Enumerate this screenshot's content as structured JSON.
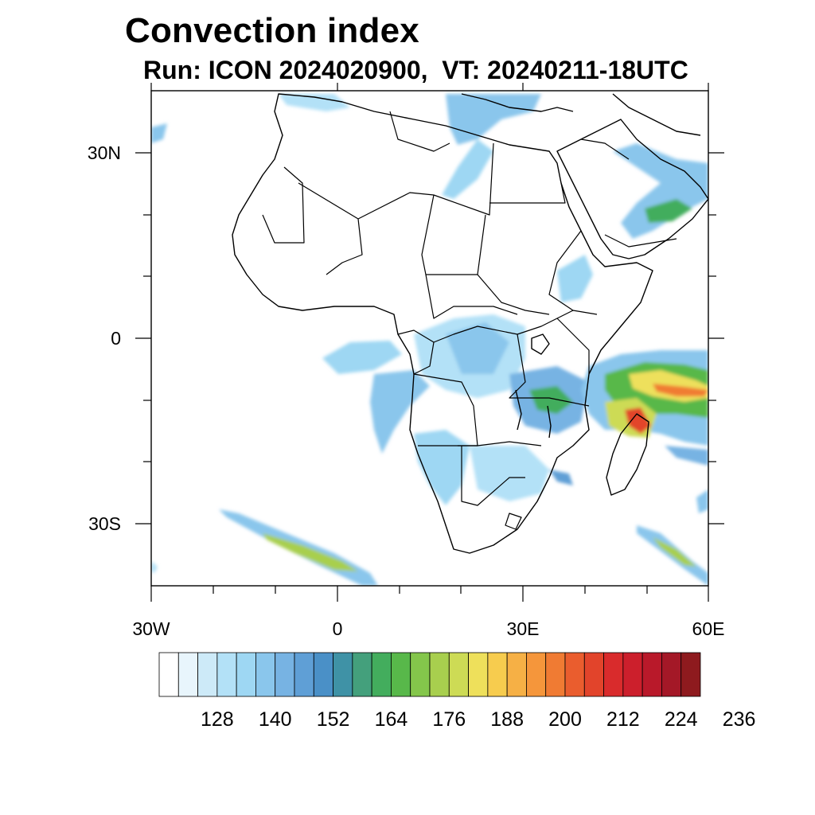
{
  "header": {
    "title": "Convection index",
    "subtitle": "Run: ICON 2024020900,  VT: 20240211-18UTC"
  },
  "axes": {
    "x_ticks": [
      "30W",
      "0",
      "30E",
      "60E"
    ],
    "y_ticks": [
      "30N",
      "0",
      "30S"
    ],
    "lon_range": [
      -30,
      60
    ],
    "lat_range": [
      -40,
      40
    ]
  },
  "colorbar": {
    "labels": [
      "128",
      "140",
      "152",
      "164",
      "176",
      "188",
      "200",
      "212",
      "224",
      "236"
    ],
    "colors": [
      "#ffffff",
      "#e8f5fc",
      "#cdeaf8",
      "#b3e1f7",
      "#9ed7f3",
      "#8ac6ec",
      "#77b3e3",
      "#5f9fd6",
      "#4a90c7",
      "#3f92a6",
      "#44a07c",
      "#43ad5d",
      "#58b84a",
      "#84c64b",
      "#a8cf4e",
      "#cddb55",
      "#eee05b",
      "#f7cc4e",
      "#f6b045",
      "#f5963b",
      "#f07b33",
      "#ea5d2e",
      "#e2442b",
      "#d92b2c",
      "#cc1f2c",
      "#b9192a",
      "#a41827",
      "#8e1a1e"
    ]
  }
}
